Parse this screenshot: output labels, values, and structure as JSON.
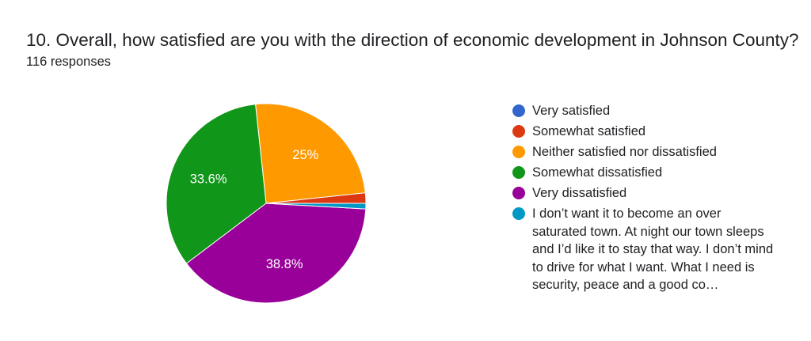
{
  "question": {
    "title": "10. Overall, how satisfied are you with the direction of economic development in Johnson County?",
    "responses": "116 responses"
  },
  "chart_data": {
    "type": "pie",
    "categories": [
      "Very satisfied",
      "Somewhat satisfied",
      "Neither satisfied nor dissatisfied",
      "Somewhat dissatisfied",
      "Very dissatisfied",
      "I don’t want it to become an over saturated town. At night our town sleeps and I’d like it to stay that way. I don’t mind to drive for what I want. What I need is security, peace and a good co…"
    ],
    "values": [
      0.0,
      1.7,
      25.0,
      33.6,
      38.8,
      0.9
    ],
    "data_labels": [
      "",
      "",
      "25%",
      "33.6%",
      "38.8%",
      ""
    ],
    "colors": [
      "#3366cc",
      "#dc3912",
      "#ff9900",
      "#109618",
      "#990099",
      "#0099c6"
    ],
    "legend_position": "right"
  }
}
